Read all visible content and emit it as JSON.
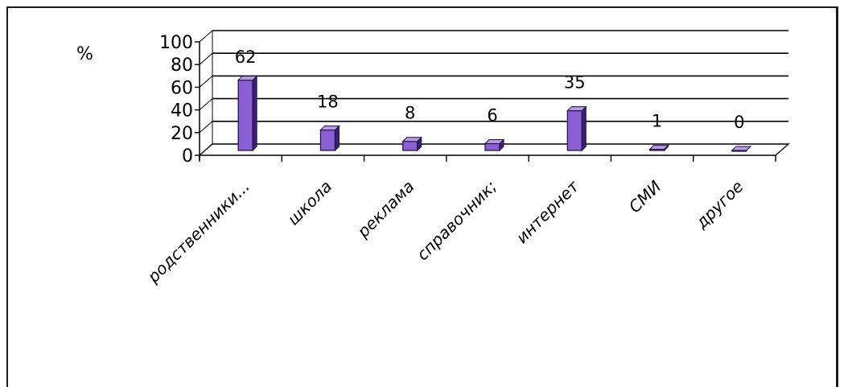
{
  "chart_data": {
    "type": "bar",
    "ylabel": "%",
    "categories": [
      "родственники...",
      "школа",
      "реклама",
      "справочник;",
      "интернет",
      "СМИ",
      "другое"
    ],
    "values": [
      62,
      18,
      8,
      6,
      35,
      1,
      0
    ],
    "ylim": [
      0,
      100
    ],
    "yticks": [
      0,
      20,
      40,
      60,
      80,
      100
    ],
    "grid": true,
    "style": "3d",
    "bar_color": "#8a5fd4"
  }
}
